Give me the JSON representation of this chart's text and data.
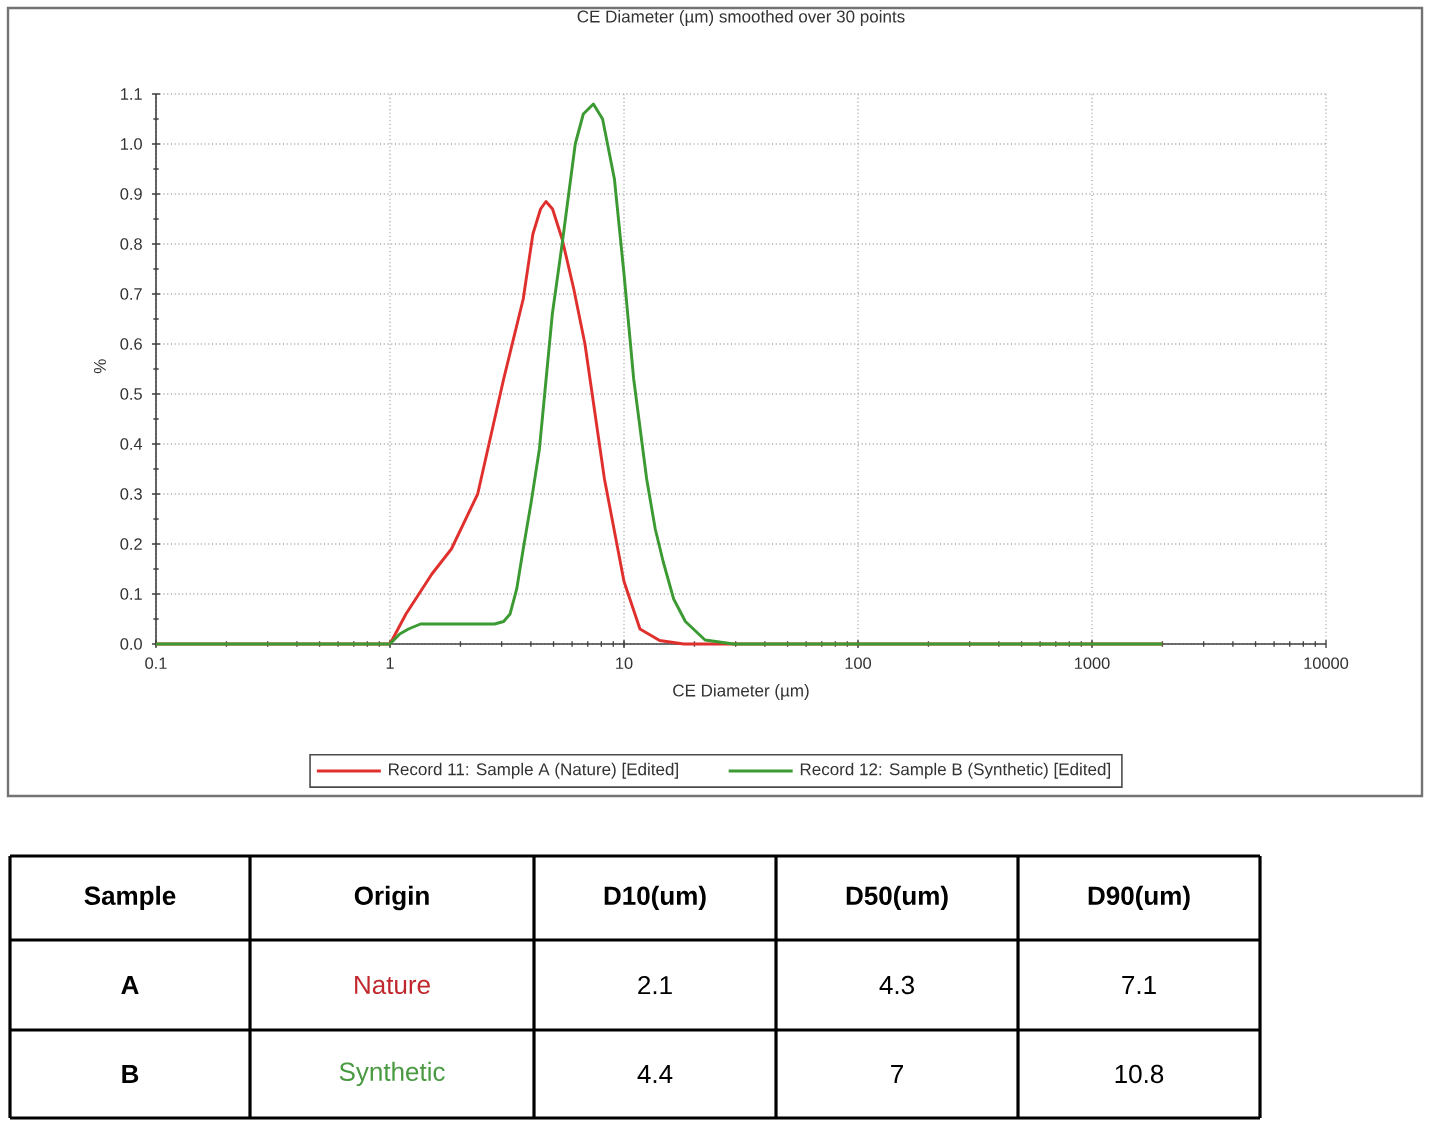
{
  "chart_data": [
    {
      "type": "line",
      "title": "CE Diameter (µm) smoothed over 30 points",
      "xlabel": "CE Diameter (µm)",
      "ylabel": "%",
      "log": "x",
      "xlim": [
        0.1,
        10000
      ],
      "xticks": [
        0.1,
        1,
        10,
        100,
        1000,
        10000
      ],
      "ylim": [
        0,
        1.1
      ],
      "yticks": [
        {
          "value": 0,
          "label": "0.0"
        },
        0.1,
        0.2,
        0.3,
        0.4,
        0.5,
        0.6,
        0.7,
        0.8,
        0.9,
        {
          "value": 1,
          "label": "1.0"
        },
        1.1
      ],
      "grid": true,
      "legend": "bottom",
      "series": [
        {
          "name": "Record 11: Sample A (Nature) [Edited]",
          "color": "#e0302e",
          "x": [
            0.1,
            1,
            1.17,
            1.51,
            1.83,
            2.37,
            3.06,
            3.71,
            4.08,
            4.4,
            4.64,
            4.95,
            5.44,
            6.1,
            6.81,
            8.25,
            10,
            11.7,
            14.2,
            18,
            2000
          ],
          "values": [
            0,
            0,
            0.06,
            0.14,
            0.19,
            0.3,
            0.53,
            0.69,
            0.82,
            0.87,
            0.885,
            0.87,
            0.81,
            0.71,
            0.6,
            0.33,
            0.125,
            0.03,
            0.007,
            0,
            0
          ]
        },
        {
          "name": "Record 12: Sample B (Synthetic) [Edited]",
          "color": "#3c9a32",
          "x": [
            0.1,
            1,
            1.1,
            1.2,
            1.35,
            2.2,
            2.8,
            3.06,
            3.26,
            3.48,
            3.71,
            4,
            4.35,
            4.94,
            5.44,
            6.19,
            6.7,
            7.4,
            8.1,
            9.1,
            10,
            11,
            12.5,
            13.6,
            14.7,
            16.3,
            18.3,
            22.2,
            29.4,
            2000
          ],
          "values": [
            0,
            0,
            0.02,
            0.03,
            0.04,
            0.04,
            0.04,
            0.045,
            0.06,
            0.11,
            0.19,
            0.28,
            0.39,
            0.66,
            0.8,
            1,
            1.06,
            1.08,
            1.05,
            0.93,
            0.74,
            0.53,
            0.33,
            0.23,
            0.165,
            0.09,
            0.045,
            0.008,
            0,
            0
          ]
        }
      ]
    },
    {
      "type": "other",
      "categories": [
        "Sample",
        "Origin",
        "D10(um)",
        "D50(um)",
        "D90(um)"
      ],
      "y_categories": [
        "A",
        "B"
      ],
      "cell_labels": [
        [
          "Nature",
          "2.1",
          "4.3",
          "7.1"
        ],
        [
          "Synthetic",
          "4.4",
          "7",
          "10.8"
        ]
      ],
      "colors": [
        [
          "#c0282d",
          null,
          null,
          null
        ],
        [
          "#4a9a42",
          null,
          null,
          null
        ]
      ]
    }
  ]
}
